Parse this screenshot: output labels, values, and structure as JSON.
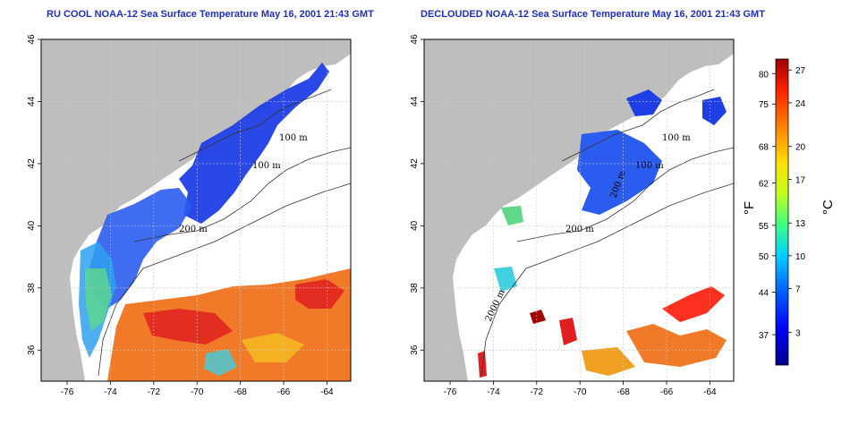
{
  "panels": [
    {
      "id": "left",
      "title": "RU COOL NOAA-12 Sea Surface Temperature May 16, 2001 21:43 GMT",
      "contour_labels": [
        "100 m",
        "100 m",
        "200 m"
      ]
    },
    {
      "id": "right",
      "title": "DECLOUDED NOAA-12 Sea Surface Temperature May 16, 2001 21:43 GMT",
      "contour_labels": [
        "100 m",
        "100 m",
        "200 m",
        "200 m",
        "2000 m"
      ]
    }
  ],
  "axes": {
    "x_ticks": [
      -76,
      -74,
      -72,
      -70,
      -68,
      -66,
      -64
    ],
    "y_ticks": [
      36,
      38,
      40,
      42,
      44,
      46
    ],
    "xlim": [
      -77.2,
      -62.9
    ],
    "ylim": [
      35,
      46
    ]
  },
  "colorbar": {
    "fahrenheit_label": "°F",
    "celsius_label": "°C",
    "fahrenheit_ticks": [
      80,
      75,
      68,
      62,
      55,
      50,
      44,
      37
    ],
    "celsius_ticks": [
      27,
      24,
      20,
      17,
      13,
      10,
      7,
      3
    ],
    "range_c": [
      0,
      28
    ],
    "colors": [
      "#00008c",
      "#0000ff",
      "#0070ff",
      "#00d0ff",
      "#40ff80",
      "#c0ff20",
      "#ffe000",
      "#ff8000",
      "#ff2000",
      "#a00000"
    ]
  },
  "colors": {
    "land": "#bebebe",
    "ocean": "#ffffff",
    "title": "#1f2fbf",
    "grid": "#c8c8c8"
  }
}
